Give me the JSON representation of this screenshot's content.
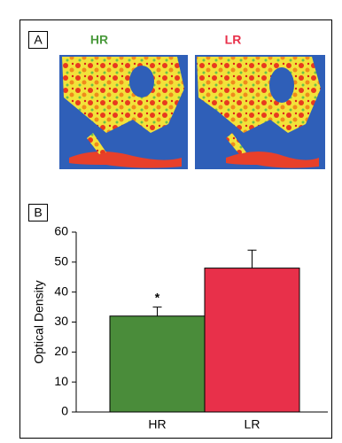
{
  "panel_a": {
    "label": "A",
    "images": [
      {
        "title": "HR",
        "color": "#4a9a3c"
      },
      {
        "title": "LR",
        "color": "#e8304a"
      }
    ]
  },
  "chart_data": {
    "type": "bar",
    "panel_label": "B",
    "y_label": "Optical Density",
    "categories": [
      "HR",
      "LR"
    ],
    "values": [
      32,
      48
    ],
    "errors": [
      3,
      6
    ],
    "colors": [
      "#4a8c3a",
      "#e8304a"
    ],
    "annotation": "*",
    "ylim": [
      0,
      60
    ],
    "yticks": [
      0,
      10,
      20,
      30,
      40,
      50,
      60
    ]
  }
}
